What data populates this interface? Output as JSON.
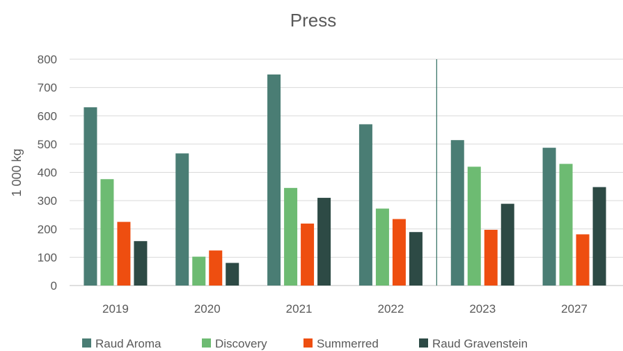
{
  "chart_data": {
    "type": "bar",
    "title": "Press",
    "xlabel": "",
    "ylabel": "1 000 kg",
    "ylim": [
      0,
      800
    ],
    "yticks": [
      "0",
      "100",
      "200",
      "300",
      "400",
      "500",
      "600",
      "700",
      "800"
    ],
    "categories": [
      "2019",
      "2020",
      "2021",
      "2022",
      "2023",
      "2027"
    ],
    "series": [
      {
        "name": "Raud Aroma",
        "color": "#4a7d74",
        "values": [
          630,
          467,
          746,
          570,
          514,
          487
        ]
      },
      {
        "name": "Discovery",
        "color": "#6dbb72",
        "values": [
          376,
          102,
          345,
          272,
          420,
          430
        ]
      },
      {
        "name": "Summerred",
        "color": "#ee4e10",
        "values": [
          225,
          124,
          219,
          235,
          197,
          181
        ]
      },
      {
        "name": "Raud Gravenstein",
        "color": "#2d4a45",
        "values": [
          157,
          80,
          310,
          189,
          289,
          348
        ]
      }
    ],
    "grid": true,
    "legend_position": "bottom",
    "divider_between": [
      "2022",
      "2023"
    ]
  }
}
